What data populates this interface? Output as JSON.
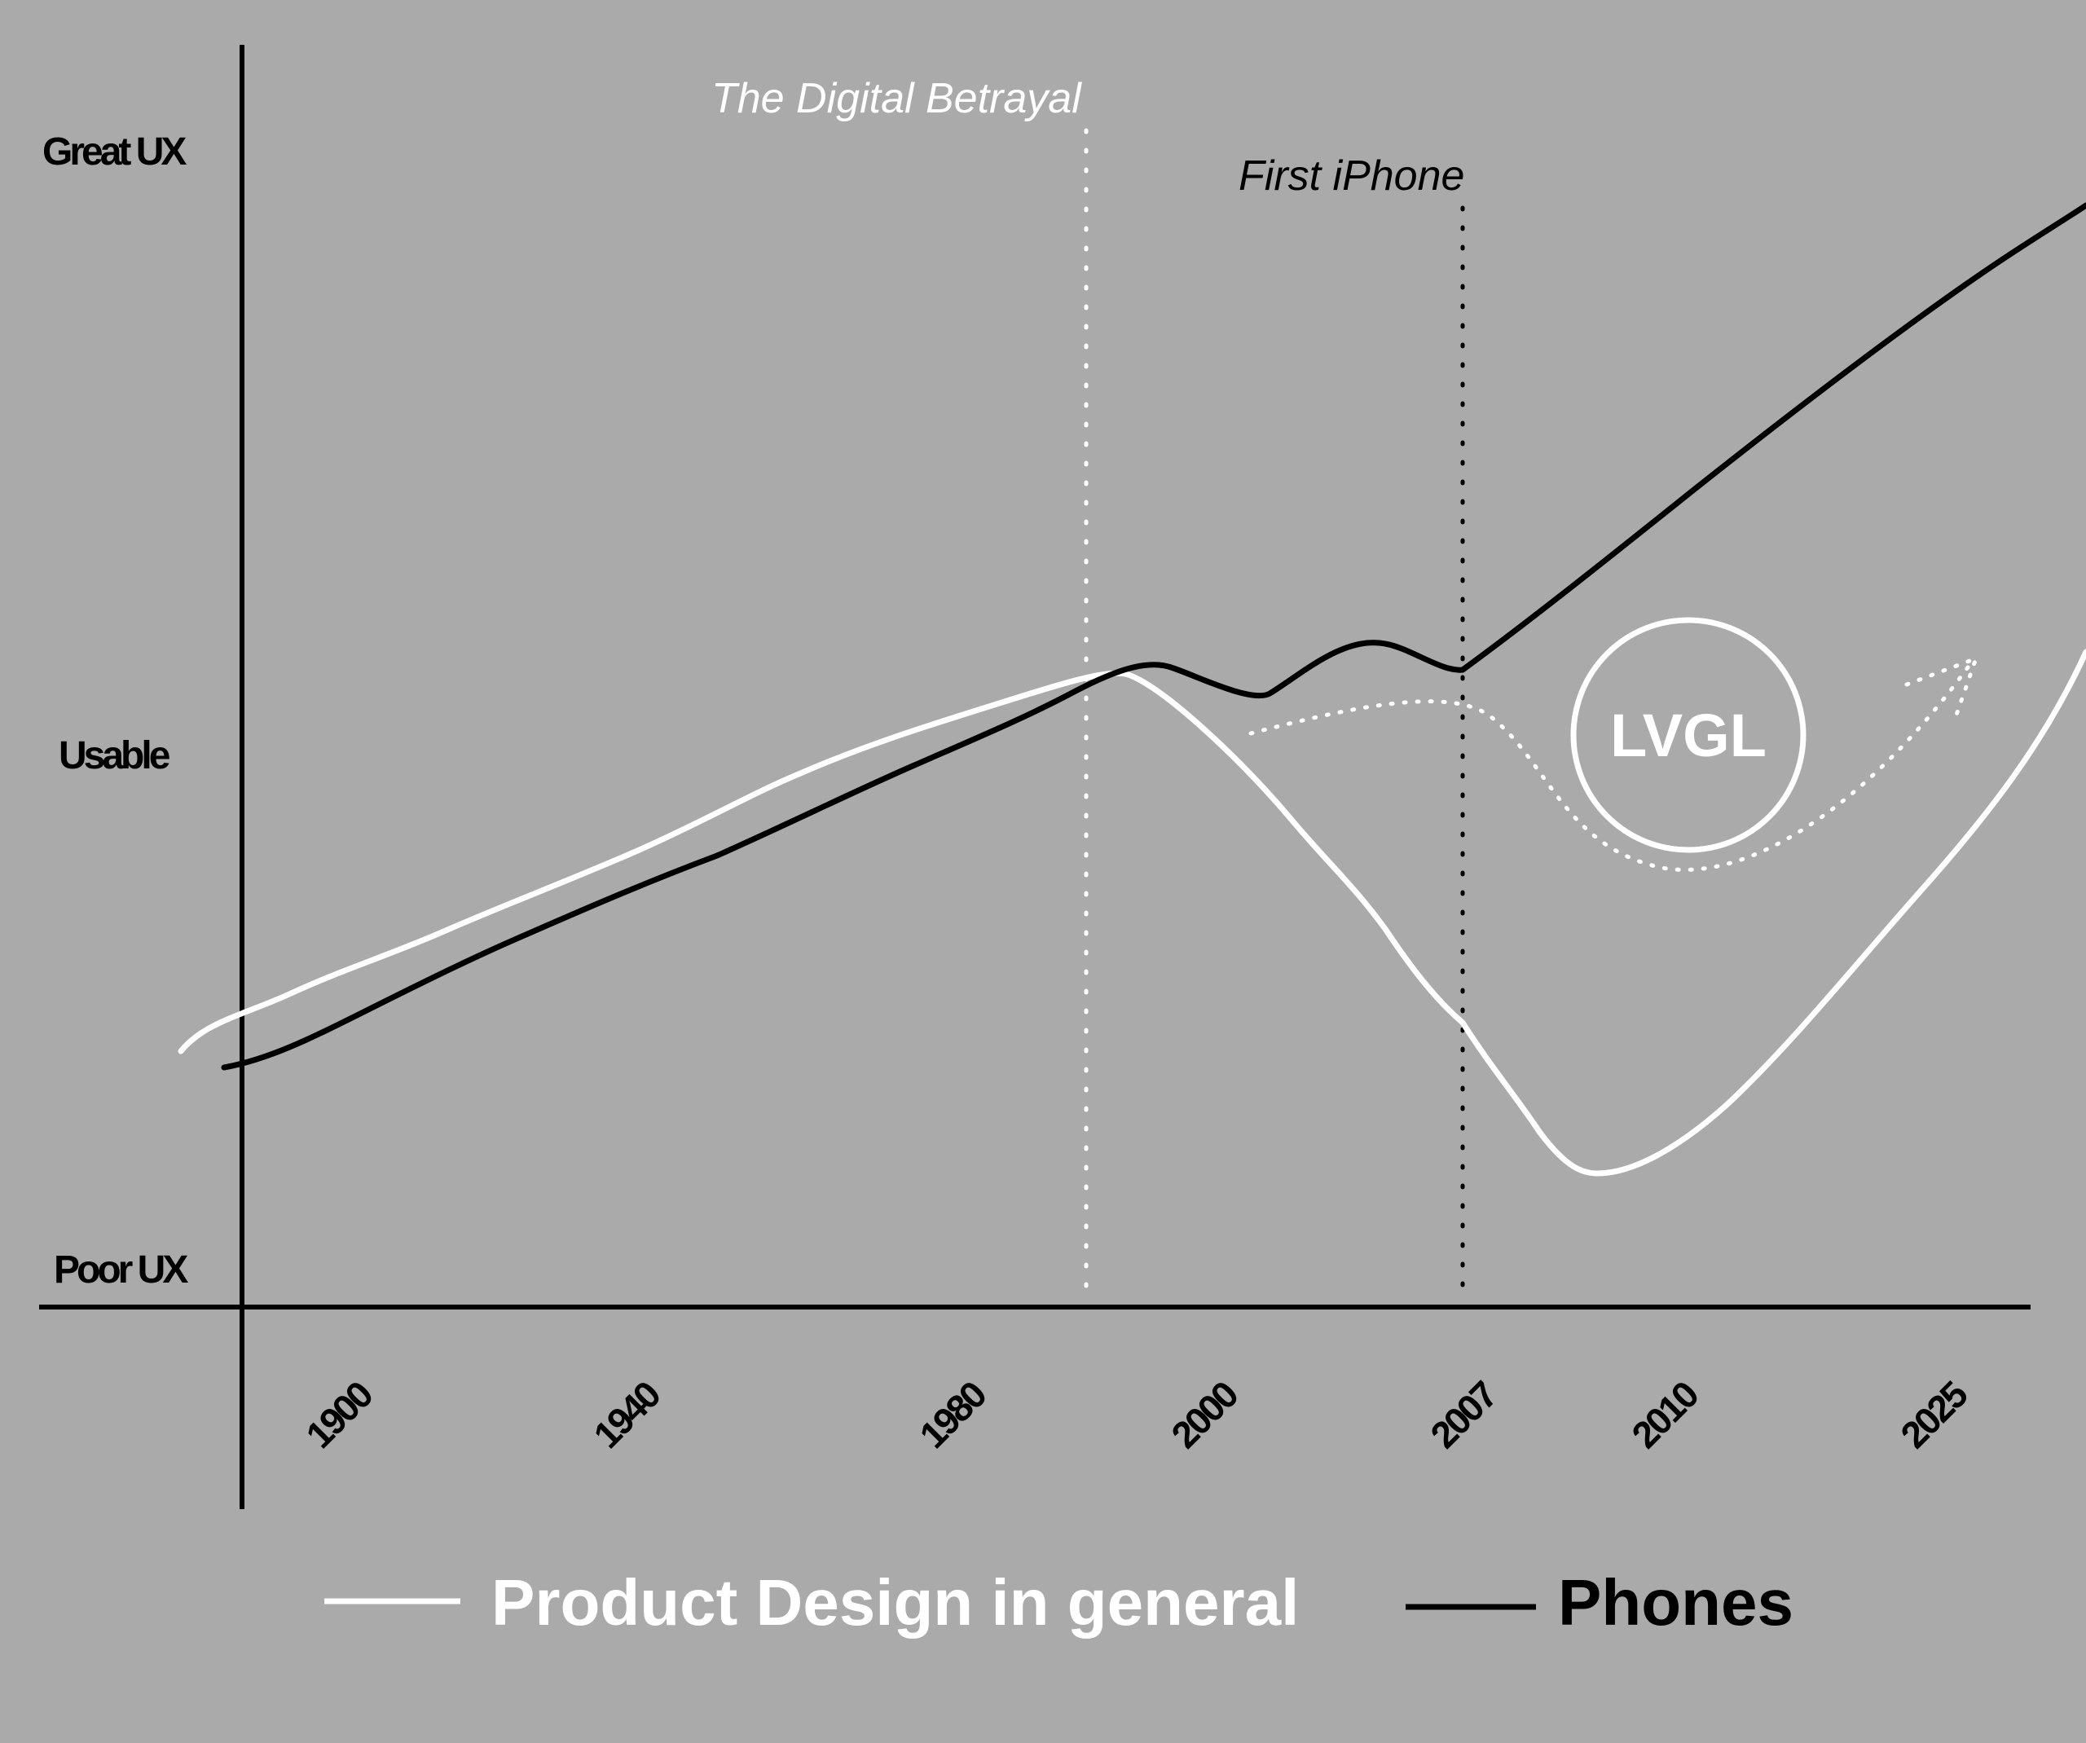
{
  "chart_data": {
    "type": "line",
    "y_levels": [
      "Poor UX",
      "Usable",
      "Great UX"
    ],
    "x_ticks": [
      "1900",
      "1940",
      "1980",
      "2000",
      "2007",
      "2010",
      "2025"
    ],
    "annotations": [
      {
        "label": "The Digital Betrayal",
        "year": 1990,
        "color": "#ffffff"
      },
      {
        "label": "First iPhone",
        "year": 2007,
        "color": "#000000"
      }
    ],
    "badge": "LVGL",
    "series": [
      {
        "name": "Product Design in general",
        "color": "#ffffff",
        "points": [
          [
            1895,
            0.225
          ],
          [
            1900,
            0.25
          ],
          [
            1920,
            0.32
          ],
          [
            1940,
            0.39
          ],
          [
            1960,
            0.47
          ],
          [
            1980,
            0.53
          ],
          [
            1990,
            0.56
          ],
          [
            1995,
            0.55
          ],
          [
            2000,
            0.43
          ],
          [
            2003,
            0.37
          ],
          [
            2007,
            0.25
          ],
          [
            2009,
            0.14
          ],
          [
            2010,
            0.12
          ],
          [
            2012,
            0.14
          ],
          [
            2016,
            0.25
          ],
          [
            2020,
            0.38
          ],
          [
            2025,
            0.52
          ],
          [
            2028,
            0.6
          ]
        ]
      },
      {
        "name": "Phones",
        "color": "#000000",
        "points": [
          [
            1895,
            0.215
          ],
          [
            1900,
            0.225
          ],
          [
            1920,
            0.29
          ],
          [
            1940,
            0.36
          ],
          [
            1960,
            0.43
          ],
          [
            1980,
            0.5
          ],
          [
            1990,
            0.55
          ],
          [
            1993,
            0.56
          ],
          [
            1998,
            0.54
          ],
          [
            2000,
            0.542
          ],
          [
            2004,
            0.57
          ],
          [
            2007,
            0.56
          ],
          [
            2010,
            0.64
          ],
          [
            2015,
            0.77
          ],
          [
            2020,
            0.9
          ],
          [
            2025,
            1.03
          ],
          [
            2030,
            1.15
          ]
        ]
      }
    ],
    "legend": [
      "Product Design in general",
      "Phones"
    ]
  },
  "colors": {
    "background": "#aaaaaa",
    "white_series": "#ffffff",
    "black_series": "#000000"
  }
}
